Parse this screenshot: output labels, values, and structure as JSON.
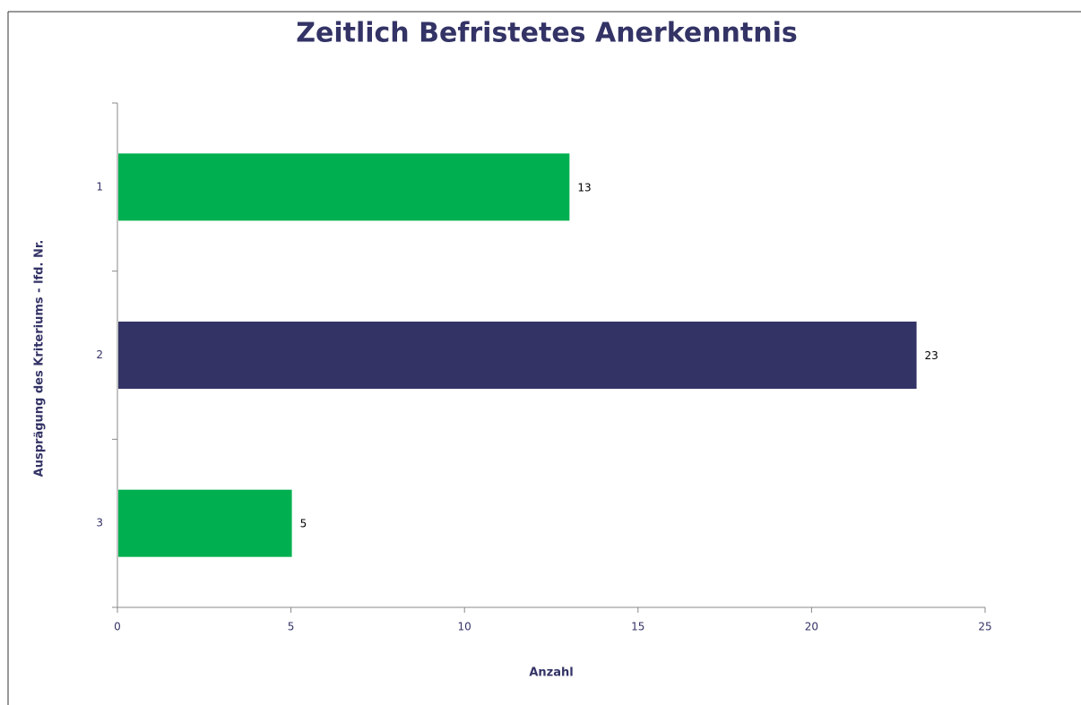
{
  "chart_data": {
    "type": "barh",
    "title": "Zeitlich Befristetes Anerkenntnis",
    "x_label": "Anzahl",
    "y_label": "Ausprägung des Kriteriums - lfd. Nr.",
    "categories": [
      "1",
      "2",
      "3"
    ],
    "values": [
      13,
      23,
      5
    ],
    "colors": [
      "#00b050",
      "#333366",
      "#00b050"
    ],
    "xlim": [
      0,
      25
    ],
    "xticks": [
      0,
      5,
      10,
      15,
      20,
      25
    ],
    "grid": false
  }
}
